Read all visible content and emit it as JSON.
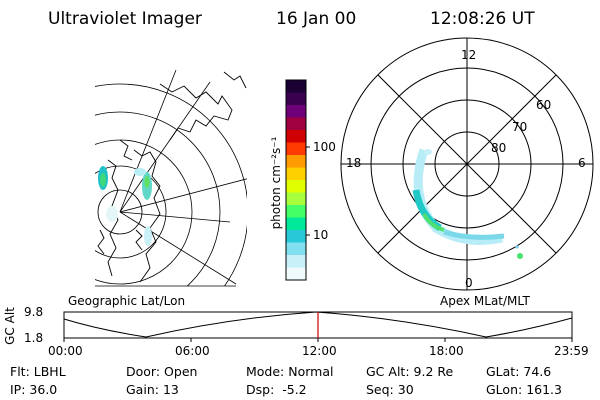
{
  "header": {
    "instrument": "Ultraviolet Imager",
    "date": "16 Jan 00",
    "time": "12:08:26 UT"
  },
  "colorbar": {
    "unit_label": "photon cm⁻²s⁻¹",
    "ticks": [
      "100",
      "10"
    ],
    "colors": [
      "#1a0033",
      "#3a0050",
      "#70007a",
      "#a00040",
      "#d00000",
      "#ff3a00",
      "#ff9a00",
      "#ffd000",
      "#e0ff00",
      "#a8ff3c",
      "#44ff66",
      "#00e89a",
      "#28c8d8",
      "#80e0f0",
      "#c8f0f8",
      "#f0fafc"
    ]
  },
  "geo_map": {
    "label": "Geographic Lat/Lon"
  },
  "polar_map": {
    "label": "Apex MLat/MLT",
    "mlt_labels": {
      "top": "12",
      "right": "6",
      "left": "18",
      "bottom": "0"
    },
    "lat_labels": [
      "60",
      "70",
      "80"
    ]
  },
  "altitude_plot": {
    "ylabel": "GC Alt",
    "ytick_top": "9.8",
    "ytick_bottom": "1.8",
    "xticks": [
      "00:00",
      "06:00",
      "12:00",
      "18:00",
      "23:59"
    ],
    "current_time_marker": "12:08"
  },
  "status": {
    "filter_label": "Flt:",
    "filter_value": "LBHL",
    "ip_label": "IP:",
    "ip_value": "36.0",
    "door_label": "Door:",
    "door_value": "Open",
    "gain_label": "Gain:",
    "gain_value": "13",
    "mode_label": "Mode:",
    "mode_value": "Normal",
    "dsp_label": "Dsp:",
    "dsp_value": "-5.2",
    "gcalt_label": "GC Alt:",
    "gcalt_value": "9.2 Re",
    "seq_label": "Seq:",
    "seq_value": "30",
    "glat_label": "GLat:",
    "glat_value": "74.6",
    "glon_label": "GLon:",
    "glon_value": "161.3"
  }
}
